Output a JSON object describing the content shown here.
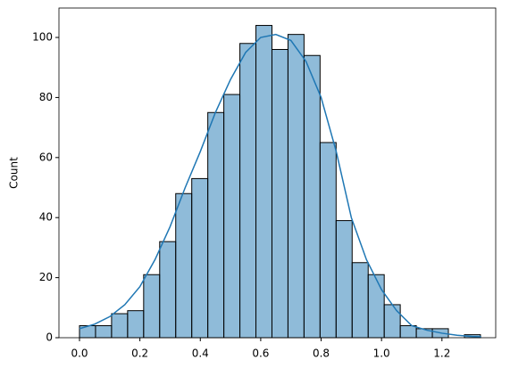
{
  "chart_data": {
    "type": "histogram",
    "y_label": "Count",
    "bins": [
      0,
      0.0531,
      0.1062,
      0.1593,
      0.2124,
      0.2655,
      0.3186,
      0.3717,
      0.4248,
      0.4779,
      0.531,
      0.5841,
      0.6372,
      0.6903,
      0.7434,
      0.7965,
      0.8496,
      0.9027,
      0.9558,
      1.0089,
      1.062,
      1.1151,
      1.1682,
      1.2213,
      1.2744,
      1.3275
    ],
    "counts": [
      4,
      4,
      8,
      9,
      21,
      32,
      48,
      53,
      75,
      81,
      98,
      104,
      96,
      101,
      94,
      65,
      39,
      25,
      21,
      11,
      4,
      3,
      3,
      0,
      1
    ],
    "color": "#1f77b4",
    "edge_color": "#000000",
    "kde": {
      "x": [
        0,
        0.05,
        0.1,
        0.15,
        0.2,
        0.25,
        0.3,
        0.35,
        0.4,
        0.45,
        0.5,
        0.55,
        0.6,
        0.65,
        0.7,
        0.75,
        0.8,
        0.85,
        0.9,
        0.95,
        1.0,
        1.05,
        1.1,
        1.15,
        1.2,
        1.25,
        1.3,
        1.33
      ],
      "values": [
        3,
        4.5,
        7,
        11,
        17,
        26,
        37,
        50,
        62,
        75,
        86,
        95,
        100,
        101,
        99,
        92,
        80,
        62,
        40,
        26,
        16,
        9,
        4,
        2.5,
        1.5,
        0.8,
        0.4,
        0.3
      ]
    },
    "xlim": [
      -0.068,
      1.378
    ],
    "ylim": [
      0,
      109.8
    ],
    "xticks": [
      {
        "value": 0,
        "label": "0.0"
      },
      0.2,
      0.4,
      0.6,
      0.8,
      {
        "value": 1,
        "label": "1.0"
      },
      1.2
    ],
    "yticks": [
      0,
      20,
      40,
      60,
      80,
      100
    ]
  }
}
